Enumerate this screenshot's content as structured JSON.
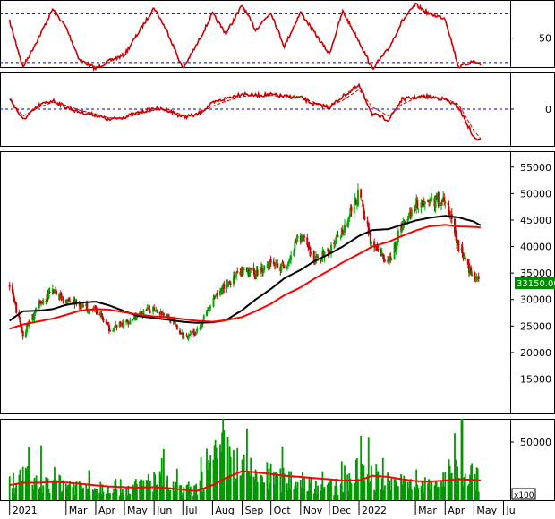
{
  "chart_data": [
    {
      "type": "line",
      "panel": "oscillator-1",
      "ylim": [
        12,
        100
      ],
      "y_ticks": [
        50
      ],
      "reference_lines": [
        18,
        82
      ],
      "x_dates": [
        "2021-01-01",
        "2021-01-15",
        "2021-02-01",
        "2021-02-15",
        "2021-03-01",
        "2021-03-15",
        "2021-04-01",
        "2021-04-15",
        "2021-05-01",
        "2021-05-15",
        "2021-06-01",
        "2021-06-15",
        "2021-07-01",
        "2021-07-15",
        "2021-08-01",
        "2021-08-15",
        "2021-09-01",
        "2021-09-15",
        "2021-10-01",
        "2021-10-15",
        "2021-11-01",
        "2021-11-15",
        "2021-12-01",
        "2021-12-15",
        "2022-01-01",
        "2022-01-15",
        "2022-02-01",
        "2022-02-15",
        "2022-03-01",
        "2022-03-15",
        "2022-04-01",
        "2022-04-15",
        "2022-05-01",
        "2022-05-08"
      ],
      "series": [
        {
          "color": "#cc0000",
          "values": [
            72,
            12,
            52,
            88,
            64,
            22,
            10,
            20,
            28,
            56,
            90,
            58,
            10,
            40,
            82,
            56,
            93,
            61,
            84,
            39,
            84,
            58,
            29,
            85,
            46,
            10,
            36,
            72,
            94,
            82,
            76,
            12,
            20,
            15
          ]
        }
      ]
    },
    {
      "type": "line",
      "panel": "oscillator-2",
      "ylim": [
        -75,
        75
      ],
      "y_ticks": [
        0
      ],
      "reference_lines": [
        0
      ],
      "x_dates": [
        "2021-01-01",
        "2021-01-15",
        "2021-02-01",
        "2021-02-15",
        "2021-03-01",
        "2021-03-15",
        "2021-04-01",
        "2021-04-15",
        "2021-05-01",
        "2021-05-15",
        "2021-06-01",
        "2021-06-15",
        "2021-07-01",
        "2021-07-15",
        "2021-08-01",
        "2021-08-15",
        "2021-09-01",
        "2021-09-15",
        "2021-10-01",
        "2021-10-15",
        "2021-11-01",
        "2021-11-15",
        "2021-12-01",
        "2021-12-15",
        "2022-01-01",
        "2022-01-15",
        "2022-02-01",
        "2022-02-15",
        "2022-03-01",
        "2022-03-15",
        "2022-04-01",
        "2022-04-15",
        "2022-05-01",
        "2022-05-08"
      ],
      "series": [
        {
          "color": "#cc0000",
          "values": [
            22,
            -22,
            8,
            18,
            4,
            -6,
            -12,
            -22,
            -16,
            -8,
            2,
            -2,
            -16,
            -12,
            12,
            22,
            32,
            28,
            30,
            26,
            24,
            10,
            4,
            26,
            48,
            -10,
            -22,
            20,
            24,
            26,
            20,
            4,
            -58,
            -65
          ]
        },
        {
          "color": "#cc0000",
          "dashed": true,
          "values": [
            20,
            -14,
            4,
            14,
            8,
            -2,
            -10,
            -18,
            -18,
            -10,
            -2,
            0,
            -12,
            -12,
            6,
            16,
            26,
            28,
            28,
            26,
            24,
            14,
            6,
            18,
            40,
            4,
            -14,
            10,
            22,
            24,
            22,
            10,
            -44,
            -60
          ]
        }
      ]
    },
    {
      "type": "candlestick",
      "panel": "price",
      "ylim": [
        8500,
        58000
      ],
      "y_ticks": [
        15000,
        20000,
        25000,
        30000,
        35000,
        40000,
        45000,
        50000,
        55000
      ],
      "last_price_label": "33150.00",
      "x_dates": [
        "2021-01-01",
        "2021-01-15",
        "2021-02-01",
        "2021-02-15",
        "2021-03-01",
        "2021-03-15",
        "2021-04-01",
        "2021-04-15",
        "2021-05-01",
        "2021-05-15",
        "2021-06-01",
        "2021-06-15",
        "2021-07-01",
        "2021-07-15",
        "2021-08-01",
        "2021-08-15",
        "2021-09-01",
        "2021-09-15",
        "2021-10-01",
        "2021-10-15",
        "2021-11-01",
        "2021-11-15",
        "2021-12-01",
        "2021-12-15",
        "2022-01-01",
        "2022-01-15",
        "2022-02-01",
        "2022-02-15",
        "2022-03-01",
        "2022-03-15",
        "2022-04-01",
        "2022-04-15",
        "2022-05-01",
        "2022-05-08"
      ],
      "close": [
        32500,
        23500,
        29000,
        31500,
        30000,
        29000,
        28000,
        24500,
        25500,
        27000,
        28500,
        27000,
        23000,
        24000,
        29500,
        33000,
        35000,
        35000,
        37000,
        36000,
        42000,
        37500,
        39000,
        43000,
        50000,
        40000,
        37000,
        44000,
        48000,
        48500,
        49000,
        40000,
        34000,
        33150
      ],
      "moving_averages": [
        {
          "color": "#000000",
          "values": [
            26000,
            27800,
            27900,
            28200,
            29000,
            29400,
            29600,
            28900,
            27800,
            26900,
            26500,
            26200,
            25800,
            25600,
            25700,
            26100,
            28000,
            30000,
            32000,
            34000,
            35600,
            37200,
            38600,
            40000,
            42000,
            43100,
            43300,
            44100,
            44900,
            45400,
            45800,
            45500,
            44700,
            44000
          ]
        },
        {
          "color": "#ff0000",
          "values": [
            24500,
            25300,
            25900,
            26400,
            27100,
            27900,
            28200,
            28100,
            27600,
            27200,
            26800,
            26700,
            26300,
            26000,
            25800,
            26100,
            26700,
            27800,
            29200,
            30800,
            32300,
            33900,
            35500,
            37000,
            38600,
            40000,
            40900,
            42000,
            43000,
            43800,
            44100,
            43800,
            43700,
            43600
          ]
        }
      ]
    },
    {
      "type": "bar",
      "panel": "volume",
      "ylim": [
        0,
        70000
      ],
      "y_ticks": [
        50000
      ],
      "unit_label": "x100",
      "x_dates": [
        "2021-01-01",
        "2021-01-15",
        "2021-02-01",
        "2021-02-15",
        "2021-03-01",
        "2021-03-15",
        "2021-04-01",
        "2021-04-15",
        "2021-05-01",
        "2021-05-15",
        "2021-06-01",
        "2021-06-15",
        "2021-07-01",
        "2021-07-15",
        "2021-08-01",
        "2021-08-15",
        "2021-09-01",
        "2021-09-15",
        "2021-10-01",
        "2021-10-15",
        "2021-11-01",
        "2021-11-15",
        "2021-12-01",
        "2021-12-15",
        "2022-01-01",
        "2022-01-15",
        "2022-02-01",
        "2022-02-15",
        "2022-03-01",
        "2022-03-15",
        "2022-04-01",
        "2022-04-15",
        "2022-05-01",
        "2022-05-08"
      ],
      "values": [
        14000,
        19000,
        15000,
        18000,
        14000,
        12000,
        11000,
        14000,
        10000,
        12000,
        18000,
        13000,
        8000,
        9000,
        30000,
        40000,
        25000,
        22000,
        20000,
        17000,
        18000,
        14000,
        11000,
        12000,
        24000,
        21000,
        15000,
        14000,
        12000,
        13000,
        18000,
        30000,
        20000,
        16000
      ],
      "moving_averages": [
        {
          "color": "#ff0000",
          "values": [
            13000,
            15000,
            15000,
            15800,
            15200,
            14200,
            12800,
            11800,
            11200,
            10800,
            11200,
            10400,
            9000,
            7800,
            13000,
            19000,
            25000,
            24000,
            22500,
            21000,
            20000,
            19000,
            18000,
            17000,
            17000,
            21000,
            20000,
            18000,
            16500,
            16000,
            17000,
            18000,
            17500,
            17000
          ]
        }
      ]
    }
  ],
  "x_axis": {
    "tick_labels": [
      {
        "date": "2021-01-01",
        "label": "2021"
      },
      {
        "date": "2021-03-01",
        "label": "Mar"
      },
      {
        "date": "2021-04-01",
        "label": "Apr"
      },
      {
        "date": "2021-05-01",
        "label": "May"
      },
      {
        "date": "2021-06-01",
        "label": "Jun"
      },
      {
        "date": "2021-07-01",
        "label": "Jul"
      },
      {
        "date": "2021-08-01",
        "label": "Aug"
      },
      {
        "date": "2021-09-01",
        "label": "Sep"
      },
      {
        "date": "2021-10-01",
        "label": "Oct"
      },
      {
        "date": "2021-11-01",
        "label": "Nov"
      },
      {
        "date": "2021-12-01",
        "label": "Dec"
      },
      {
        "date": "2022-01-01",
        "label": "2022"
      },
      {
        "date": "2022-03-01",
        "label": "Mar"
      },
      {
        "date": "2022-04-01",
        "label": "Apr"
      },
      {
        "date": "2022-05-01",
        "label": "May"
      },
      {
        "date": "2022-06-01",
        "label": "Ju"
      }
    ]
  },
  "colors": {
    "up_candle": "#00aa00",
    "down_candle": "#cc0000",
    "volume_bar": "#009900",
    "reference_line": "#0000cc",
    "price_label_bg": "#008800",
    "price_label_text": "#ffffff"
  }
}
